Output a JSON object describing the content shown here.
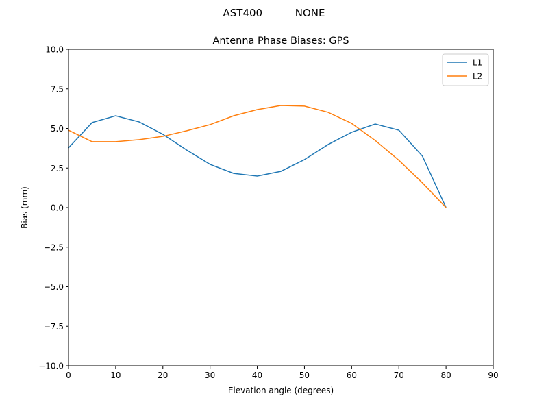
{
  "chart_data": {
    "type": "line",
    "suptitle": "AST400          NONE",
    "title": "Antenna Phase Biases: GPS",
    "xlabel": "Elevation angle (degrees)",
    "ylabel": "Bias (mm)",
    "xlim": [
      0,
      90
    ],
    "ylim": [
      -10,
      10
    ],
    "xticks": [
      0,
      10,
      20,
      30,
      40,
      50,
      60,
      70,
      80,
      90
    ],
    "xtick_labels": [
      "0",
      "10",
      "20",
      "30",
      "40",
      "50",
      "60",
      "70",
      "80",
      "90"
    ],
    "yticks": [
      -10,
      -7.5,
      -5,
      -2.5,
      0,
      2.5,
      5,
      7.5,
      10
    ],
    "ytick_labels": [
      "−10.0",
      "−7.5",
      "−5.0",
      "−2.5",
      "0.0",
      "2.5",
      "5.0",
      "7.5",
      "10.0"
    ],
    "grid": false,
    "legend_position": "top-right",
    "x": [
      0,
      5,
      10,
      15,
      20,
      25,
      30,
      35,
      40,
      45,
      50,
      55,
      60,
      65,
      70,
      75,
      80
    ],
    "series": [
      {
        "name": "L1",
        "color": "#1f77b4",
        "values": [
          3.77,
          5.37,
          5.8,
          5.41,
          4.63,
          3.64,
          2.73,
          2.16,
          1.99,
          2.29,
          3.03,
          3.98,
          4.76,
          5.28,
          4.89,
          3.25,
          0.0
        ]
      },
      {
        "name": "L2",
        "color": "#ff7f0e",
        "values": [
          4.89,
          4.16,
          4.16,
          4.29,
          4.5,
          4.85,
          5.24,
          5.8,
          6.19,
          6.45,
          6.41,
          6.02,
          5.32,
          4.24,
          2.99,
          1.56,
          0.0
        ]
      }
    ]
  }
}
